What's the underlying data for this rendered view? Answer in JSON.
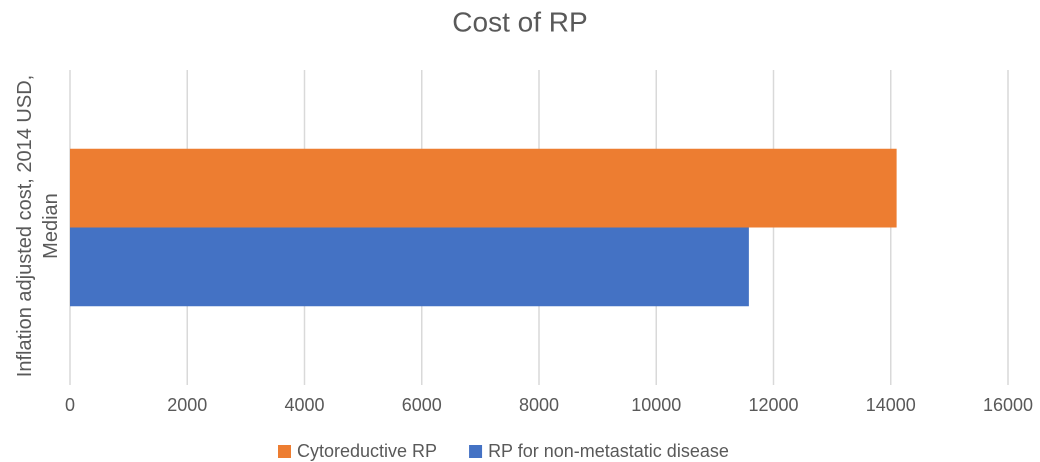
{
  "chart_data": {
    "type": "bar",
    "orientation": "horizontal",
    "title": "Cost of RP",
    "categories": [
      "Inflation adjusted cost, 2014 USD, Median"
    ],
    "series": [
      {
        "name": "Cytoreductive RP",
        "color": "#ed7d31",
        "values": [
          14100
        ]
      },
      {
        "name": "RP for non-metastatic disease",
        "color": "#4472c4",
        "values": [
          11580
        ]
      }
    ],
    "xlim": [
      0,
      16000
    ],
    "xticks": [
      0,
      2000,
      4000,
      6000,
      8000,
      10000,
      12000,
      14000,
      16000
    ],
    "grid": true,
    "legend": "bottom"
  }
}
